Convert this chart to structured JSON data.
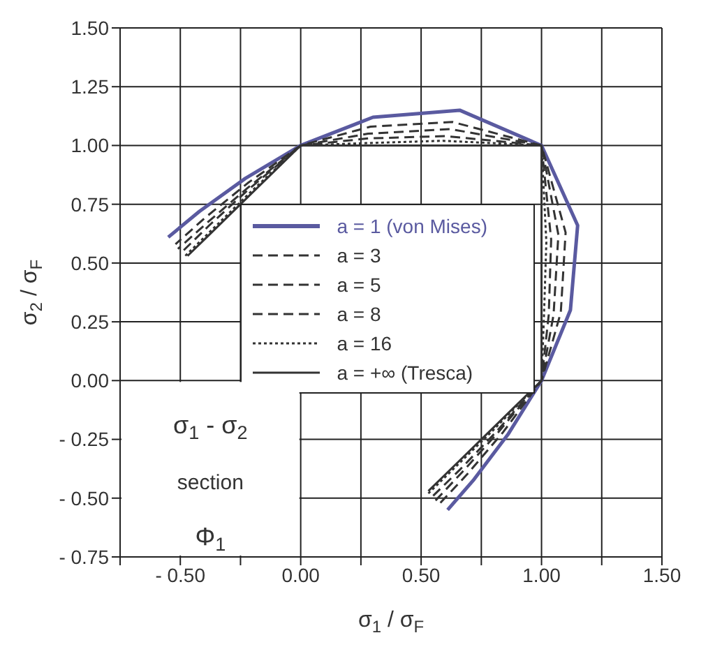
{
  "chart_data": {
    "type": "line",
    "xlabel": "σ$_{1}$ / σ$_{F}$",
    "ylabel": "σ$_{2}$ / σ$_{F}$",
    "xlim": [
      -0.75,
      1.5
    ],
    "xticks": [
      {
        "value": -0.75,
        "label": null
      },
      {
        "value": -0.5,
        "label": "- 0.50"
      },
      {
        "value": -0.25,
        "label": null
      },
      {
        "value": 0,
        "label": "0.00"
      },
      {
        "value": 0.25,
        "label": null
      },
      {
        "value": 0.5,
        "label": "0.50"
      },
      {
        "value": 0.75,
        "label": null
      },
      {
        "value": 1,
        "label": "1.00"
      },
      {
        "value": 1.25,
        "label": null
      },
      {
        "value": 1.5,
        "label": "1.50"
      }
    ],
    "ylim": [
      -0.75,
      1.5
    ],
    "yticks": [
      {
        "value": -0.75,
        "label": "- 0.75"
      },
      {
        "value": -0.5,
        "label": "- 0.50"
      },
      {
        "value": -0.25,
        "label": "- 0.25"
      },
      {
        "value": 0,
        "label": "0.00"
      },
      {
        "value": 0.25,
        "label": "0.25"
      },
      {
        "value": 0.5,
        "label": "0.50"
      },
      {
        "value": 0.75,
        "label": "0.75"
      },
      {
        "value": 1,
        "label": "1.00"
      },
      {
        "value": 1.25,
        "label": "1.25"
      },
      {
        "value": 1.5,
        "label": "1.50"
      }
    ],
    "grid": true,
    "legend": "center",
    "marker": "none",
    "annotations": [
      "σ$_{1}$ - σ$_{2}$",
      "section",
      "Φ$_{1}$"
    ],
    "series": [
      {
        "name": "a = 1 (von Mises)",
        "color": "#5a5aa0",
        "line_style": "solid",
        "x": [
          0.61,
          0.72,
          0.86,
          1,
          1.12,
          1.15,
          1,
          0.66,
          0.3,
          0,
          -0.23,
          -0.42,
          -0.55
        ],
        "values": [
          -0.55,
          -0.42,
          -0.23,
          0,
          0.3,
          0.66,
          1,
          1.15,
          1.12,
          1,
          0.86,
          0.72,
          0.61
        ]
      },
      {
        "name": "a = 3",
        "color": "#333333",
        "line_style": "dashed",
        "x": [
          0.58,
          0.69,
          0.84,
          1,
          1.08,
          1.1,
          1,
          0.63,
          0.29,
          0,
          -0.22,
          -0.4,
          -0.52
        ],
        "values": [
          -0.52,
          -0.4,
          -0.22,
          0,
          0.29,
          0.63,
          1,
          1.1,
          1.08,
          1,
          0.84,
          0.69,
          0.58
        ]
      },
      {
        "name": "a = 5",
        "color": "#333333",
        "line_style": "dashed",
        "x": [
          0.56,
          0.67,
          0.82,
          1,
          1.05,
          1.07,
          1,
          0.62,
          0.28,
          0,
          -0.22,
          -0.39,
          -0.51
        ],
        "values": [
          -0.51,
          -0.39,
          -0.22,
          0,
          0.28,
          0.62,
          1,
          1.07,
          1.05,
          1,
          0.82,
          0.67,
          0.56
        ]
      },
      {
        "name": "a = 8",
        "color": "#333333",
        "line_style": "dashed",
        "x": [
          0.55,
          0.66,
          0.81,
          1,
          1.03,
          1.04,
          1,
          0.6,
          0.28,
          0,
          -0.22,
          -0.38,
          -0.49
        ],
        "values": [
          -0.49,
          -0.38,
          -0.22,
          0,
          0.28,
          0.6,
          1,
          1.04,
          1.03,
          1,
          0.81,
          0.66,
          0.55
        ]
      },
      {
        "name": "a = 16",
        "color": "#333333",
        "line_style": "dotted",
        "x": [
          0.53,
          0.64,
          0.8,
          1,
          1.01,
          1.02,
          1,
          0.59,
          0.27,
          0,
          -0.21,
          -0.37,
          -0.48
        ],
        "values": [
          -0.48,
          -0.37,
          -0.21,
          0,
          0.27,
          0.59,
          1,
          1.02,
          1.01,
          1,
          0.8,
          0.64,
          0.53
        ]
      },
      {
        "name": "a = +∞ (Tresca)",
        "color": "#333333",
        "line_style": "solid",
        "x": [
          0.53,
          0.63,
          0.79,
          1,
          1,
          1,
          1,
          0.58,
          0.27,
          0,
          -0.21,
          -0.37,
          -0.47
        ],
        "values": [
          -0.47,
          -0.37,
          -0.21,
          0,
          0.27,
          0.58,
          1,
          1,
          1,
          1,
          0.79,
          0.63,
          0.53
        ]
      }
    ]
  }
}
